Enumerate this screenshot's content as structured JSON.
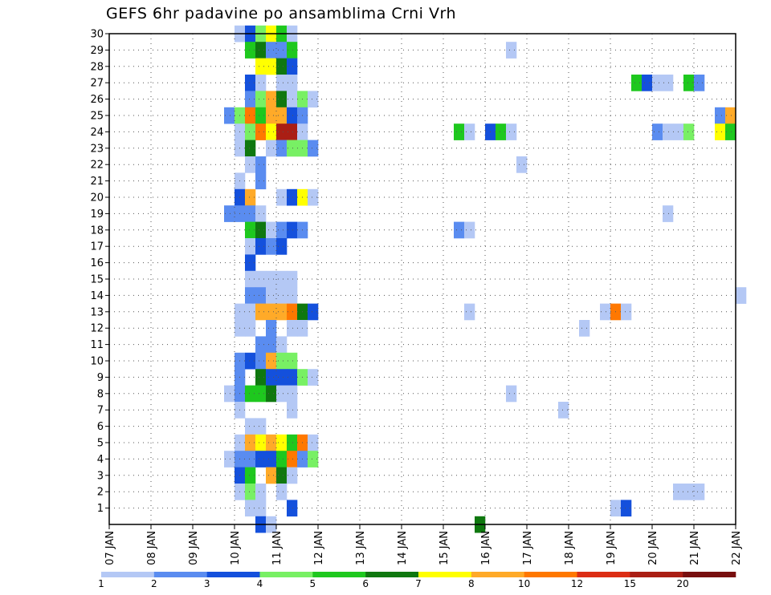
{
  "chart_data": {
    "type": "heatmap",
    "title": "GEFS 6hr padavine po ansamblima Crni Vrh",
    "x_tick_labels": [
      "07 JAN",
      "08 JAN",
      "09 JAN",
      "10 JAN",
      "11 JAN",
      "12 JAN",
      "13 JAN",
      "14 JAN",
      "15 JAN",
      "16 JAN",
      "17 JAN",
      "18 JAN",
      "19 JAN",
      "20 JAN",
      "21 JAN",
      "22 JAN"
    ],
    "y_tick_labels": [
      "1",
      "2",
      "3",
      "4",
      "5",
      "6",
      "7",
      "8",
      "9",
      "10",
      "11",
      "12",
      "13",
      "14",
      "15",
      "16",
      "17",
      "18",
      "19",
      "20",
      "21",
      "22",
      "23",
      "24",
      "25",
      "26",
      "27",
      "28",
      "29",
      "30"
    ],
    "xlim_days": [
      7,
      22
    ],
    "ylim": [
      0,
      30
    ],
    "time_step_hours": 6,
    "grid": true,
    "legend": {
      "placement": "bottom",
      "labels": [
        "1",
        "2",
        "3",
        "4",
        "5",
        "6",
        "7",
        "8",
        "10",
        "12",
        "15",
        "20"
      ],
      "colors": [
        "#b4c8f5",
        "#5a8cf0",
        "#1450dc",
        "#78f064",
        "#1ec81e",
        "#0f780f",
        "#ffff00",
        "#ffaa28",
        "#ff7800",
        "#dc2d14",
        "#aa1e14",
        "#780f0f"
      ]
    },
    "cells_format": "[member, time_index_from_07_JAN_00UTC_in_6h_steps, color_level]",
    "cells": [
      [
        30,
        12,
        1
      ],
      [
        30,
        13,
        3
      ],
      [
        30,
        14,
        4
      ],
      [
        30,
        15,
        7
      ],
      [
        30,
        16,
        5
      ],
      [
        30,
        17,
        1
      ],
      [
        29,
        13,
        5
      ],
      [
        29,
        14,
        6
      ],
      [
        29,
        15,
        2
      ],
      [
        29,
        16,
        2
      ],
      [
        29,
        17,
        5
      ],
      [
        29,
        38,
        1
      ],
      [
        28,
        14,
        7
      ],
      [
        28,
        15,
        7
      ],
      [
        28,
        16,
        6
      ],
      [
        28,
        17,
        3
      ],
      [
        27,
        13,
        3
      ],
      [
        27,
        14,
        1
      ],
      [
        27,
        16,
        1
      ],
      [
        27,
        17,
        1
      ],
      [
        27,
        50,
        5
      ],
      [
        27,
        51,
        3
      ],
      [
        27,
        52,
        1
      ],
      [
        27,
        53,
        1
      ],
      [
        27,
        55,
        5
      ],
      [
        27,
        56,
        2
      ],
      [
        26,
        13,
        2
      ],
      [
        26,
        14,
        4
      ],
      [
        26,
        15,
        8
      ],
      [
        26,
        16,
        6
      ],
      [
        26,
        17,
        1
      ],
      [
        26,
        18,
        4
      ],
      [
        26,
        19,
        1
      ],
      [
        25,
        11,
        2
      ],
      [
        25,
        12,
        4
      ],
      [
        25,
        13,
        9
      ],
      [
        25,
        14,
        5
      ],
      [
        25,
        15,
        8
      ],
      [
        25,
        16,
        8
      ],
      [
        25,
        17,
        3
      ],
      [
        25,
        18,
        2
      ],
      [
        25,
        58,
        2
      ],
      [
        25,
        59,
        8
      ],
      [
        24,
        12,
        1
      ],
      [
        24,
        13,
        4
      ],
      [
        24,
        14,
        9
      ],
      [
        24,
        15,
        7
      ],
      [
        24,
        16,
        11
      ],
      [
        24,
        17,
        11
      ],
      [
        24,
        18,
        1
      ],
      [
        24,
        33,
        5
      ],
      [
        24,
        34,
        1
      ],
      [
        24,
        36,
        3
      ],
      [
        24,
        37,
        5
      ],
      [
        24,
        38,
        1
      ],
      [
        24,
        52,
        2
      ],
      [
        24,
        53,
        1
      ],
      [
        24,
        54,
        1
      ],
      [
        24,
        55,
        4
      ],
      [
        24,
        58,
        7
      ],
      [
        24,
        59,
        5
      ],
      [
        23,
        12,
        1
      ],
      [
        23,
        13,
        6
      ],
      [
        23,
        15,
        1
      ],
      [
        23,
        16,
        2
      ],
      [
        23,
        17,
        4
      ],
      [
        23,
        18,
        4
      ],
      [
        23,
        19,
        2
      ],
      [
        22,
        13,
        1
      ],
      [
        22,
        14,
        2
      ],
      [
        22,
        39,
        1
      ],
      [
        21,
        12,
        1
      ],
      [
        21,
        14,
        2
      ],
      [
        20,
        12,
        3
      ],
      [
        20,
        13,
        8
      ],
      [
        20,
        16,
        1
      ],
      [
        20,
        17,
        3
      ],
      [
        20,
        18,
        7
      ],
      [
        20,
        19,
        1
      ],
      [
        19,
        11,
        2
      ],
      [
        19,
        12,
        2
      ],
      [
        19,
        13,
        2
      ],
      [
        19,
        14,
        1
      ],
      [
        19,
        53,
        1
      ],
      [
        18,
        13,
        5
      ],
      [
        18,
        14,
        6
      ],
      [
        18,
        15,
        1
      ],
      [
        18,
        16,
        2
      ],
      [
        18,
        17,
        3
      ],
      [
        18,
        18,
        2
      ],
      [
        18,
        33,
        2
      ],
      [
        18,
        34,
        1
      ],
      [
        17,
        13,
        1
      ],
      [
        17,
        14,
        3
      ],
      [
        17,
        15,
        2
      ],
      [
        17,
        16,
        3
      ],
      [
        16,
        13,
        3
      ],
      [
        15,
        13,
        1
      ],
      [
        15,
        14,
        1
      ],
      [
        15,
        15,
        1
      ],
      [
        15,
        16,
        1
      ],
      [
        15,
        17,
        1
      ],
      [
        14,
        13,
        2
      ],
      [
        14,
        14,
        2
      ],
      [
        14,
        15,
        1
      ],
      [
        14,
        16,
        1
      ],
      [
        14,
        17,
        1
      ],
      [
        14,
        60,
        1
      ],
      [
        13,
        12,
        1
      ],
      [
        13,
        13,
        1
      ],
      [
        13,
        14,
        8
      ],
      [
        13,
        15,
        8
      ],
      [
        13,
        16,
        8
      ],
      [
        13,
        17,
        9
      ],
      [
        13,
        18,
        6
      ],
      [
        13,
        19,
        3
      ],
      [
        13,
        34,
        1
      ],
      [
        13,
        47,
        1
      ],
      [
        13,
        48,
        9
      ],
      [
        13,
        49,
        1
      ],
      [
        12,
        12,
        1
      ],
      [
        12,
        13,
        1
      ],
      [
        12,
        15,
        2
      ],
      [
        12,
        17,
        1
      ],
      [
        12,
        18,
        1
      ],
      [
        12,
        45,
        1
      ],
      [
        11,
        14,
        2
      ],
      [
        11,
        15,
        2
      ],
      [
        11,
        16,
        1
      ],
      [
        10,
        12,
        2
      ],
      [
        10,
        13,
        3
      ],
      [
        10,
        14,
        2
      ],
      [
        10,
        15,
        8
      ],
      [
        10,
        16,
        4
      ],
      [
        10,
        17,
        4
      ],
      [
        9,
        12,
        2
      ],
      [
        9,
        14,
        6
      ],
      [
        9,
        15,
        3
      ],
      [
        9,
        16,
        3
      ],
      [
        9,
        17,
        3
      ],
      [
        9,
        18,
        4
      ],
      [
        9,
        19,
        1
      ],
      [
        8,
        11,
        1
      ],
      [
        8,
        12,
        2
      ],
      [
        8,
        13,
        5
      ],
      [
        8,
        14,
        5
      ],
      [
        8,
        15,
        6
      ],
      [
        8,
        16,
        1
      ],
      [
        8,
        17,
        1
      ],
      [
        8,
        38,
        1
      ],
      [
        7,
        12,
        1
      ],
      [
        7,
        17,
        1
      ],
      [
        7,
        43,
        1
      ],
      [
        6,
        13,
        1
      ],
      [
        6,
        14,
        1
      ],
      [
        5,
        12,
        1
      ],
      [
        5,
        13,
        8
      ],
      [
        5,
        14,
        7
      ],
      [
        5,
        15,
        8
      ],
      [
        5,
        16,
        7
      ],
      [
        5,
        17,
        5
      ],
      [
        5,
        18,
        9
      ],
      [
        5,
        19,
        1
      ],
      [
        4,
        11,
        1
      ],
      [
        4,
        12,
        2
      ],
      [
        4,
        13,
        2
      ],
      [
        4,
        14,
        3
      ],
      [
        4,
        15,
        3
      ],
      [
        4,
        16,
        5
      ],
      [
        4,
        17,
        9
      ],
      [
        4,
        18,
        2
      ],
      [
        4,
        19,
        4
      ],
      [
        3,
        12,
        3
      ],
      [
        3,
        13,
        5
      ],
      [
        3,
        15,
        8
      ],
      [
        3,
        16,
        6
      ],
      [
        3,
        17,
        1
      ],
      [
        2,
        12,
        1
      ],
      [
        2,
        13,
        4
      ],
      [
        2,
        14,
        1
      ],
      [
        2,
        16,
        1
      ],
      [
        2,
        54,
        1
      ],
      [
        2,
        55,
        1
      ],
      [
        2,
        56,
        1
      ],
      [
        1,
        13,
        1
      ],
      [
        1,
        14,
        1
      ],
      [
        1,
        17,
        3
      ],
      [
        1,
        48,
        1
      ],
      [
        1,
        49,
        3
      ],
      [
        0,
        14,
        3
      ],
      [
        0,
        15,
        1
      ],
      [
        0,
        35,
        6
      ]
    ]
  }
}
